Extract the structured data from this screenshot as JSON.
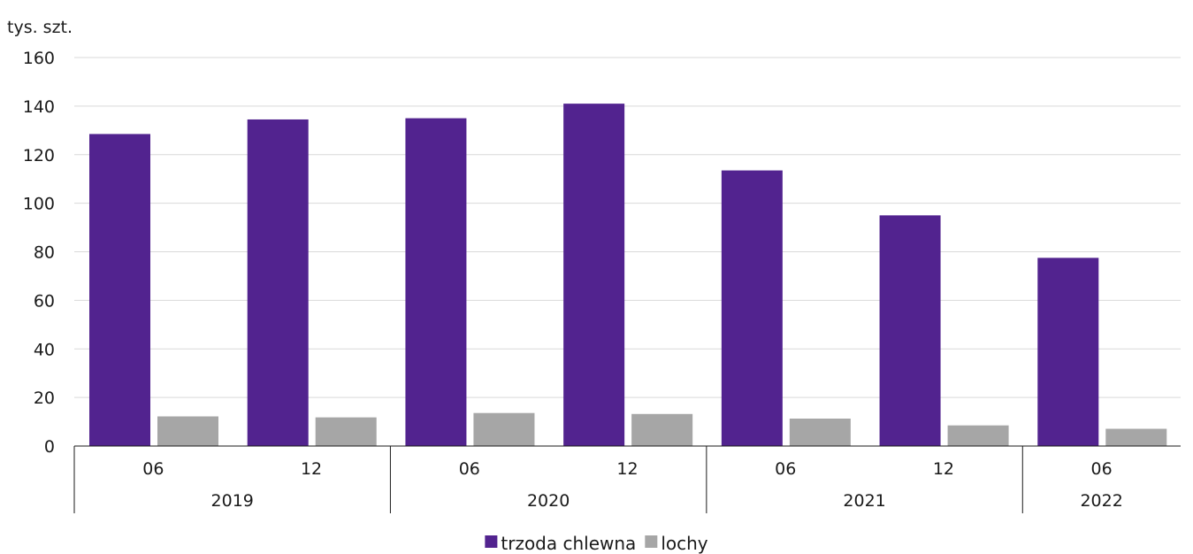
{
  "chart_data": {
    "type": "bar",
    "unit_label": "tys. szt.",
    "categories": [
      "06",
      "12",
      "06",
      "12",
      "06",
      "12",
      "06"
    ],
    "groups": [
      {
        "label": "2019",
        "count": 2
      },
      {
        "label": "2020",
        "count": 2
      },
      {
        "label": "2021",
        "count": 2
      },
      {
        "label": "2022",
        "count": 1
      }
    ],
    "series": [
      {
        "name": "trzoda chlewna",
        "color": "#52238f",
        "values": [
          128.5,
          134.5,
          135,
          141,
          113.5,
          95,
          77.5
        ]
      },
      {
        "name": "lochy",
        "color": "#a6a6a6",
        "values": [
          12.2,
          11.8,
          13.6,
          13.2,
          11.3,
          8.5,
          7.1
        ]
      }
    ],
    "yticks": [
      "0",
      "20",
      "40",
      "60",
      "80",
      "100",
      "120",
      "140",
      "160"
    ],
    "ylim": [
      0,
      160
    ],
    "grid": true,
    "legend_position": "bottom-center"
  }
}
